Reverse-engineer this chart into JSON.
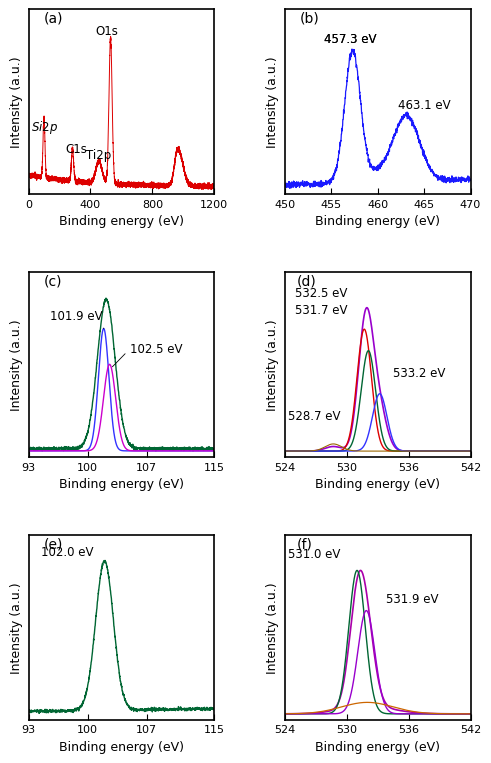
{
  "panels": {
    "a": {
      "label": "(a)",
      "xlim": [
        0,
        1200
      ],
      "xticks": [
        0,
        400,
        800,
        1200
      ],
      "xlabel": "Binding energy (eV)",
      "ylabel": "Intensity (a.u.)",
      "color": "#dd0000"
    },
    "b": {
      "label": "(b)",
      "xlim": [
        450,
        470
      ],
      "xticks": [
        450,
        455,
        460,
        465,
        470
      ],
      "xlabel": "Binding energy (eV)",
      "ylabel": "Intensity (a.u.)",
      "color": "#1a1aff"
    },
    "c": {
      "label": "(c)",
      "xlim": [
        93,
        115
      ],
      "xticks": [
        93,
        100,
        107,
        115
      ],
      "xlabel": "Binding energy (eV)",
      "ylabel": "Intensity (a.u.)"
    },
    "d": {
      "label": "(d)",
      "xlim": [
        524,
        542
      ],
      "xticks": [
        524,
        530,
        536,
        542
      ],
      "xlabel": "Binding energy (eV)",
      "ylabel": "Intensity (a.u.)"
    },
    "e": {
      "label": "(e)",
      "xlim": [
        93,
        115
      ],
      "xticks": [
        93,
        100,
        107,
        115
      ],
      "xlabel": "Binding energy (eV)",
      "ylabel": "Intensity (a.u.)"
    },
    "f": {
      "label": "(f)",
      "xlim": [
        524,
        542
      ],
      "xticks": [
        524,
        530,
        536,
        542
      ],
      "xlabel": "Binding energy (eV)",
      "ylabel": "Intensity (a.u.)"
    }
  },
  "colors": {
    "red": "#dd0000",
    "blue": "#1a1aff",
    "dark_green": "#006633",
    "purple": "#cc00cc",
    "magenta": "#bb00bb",
    "orange": "#cc6600",
    "green2": "#009933",
    "blue2": "#3333ff"
  },
  "tick_label_fontsize": 8,
  "axis_label_fontsize": 9,
  "panel_label_fontsize": 10,
  "annotation_fontsize": 8.5
}
